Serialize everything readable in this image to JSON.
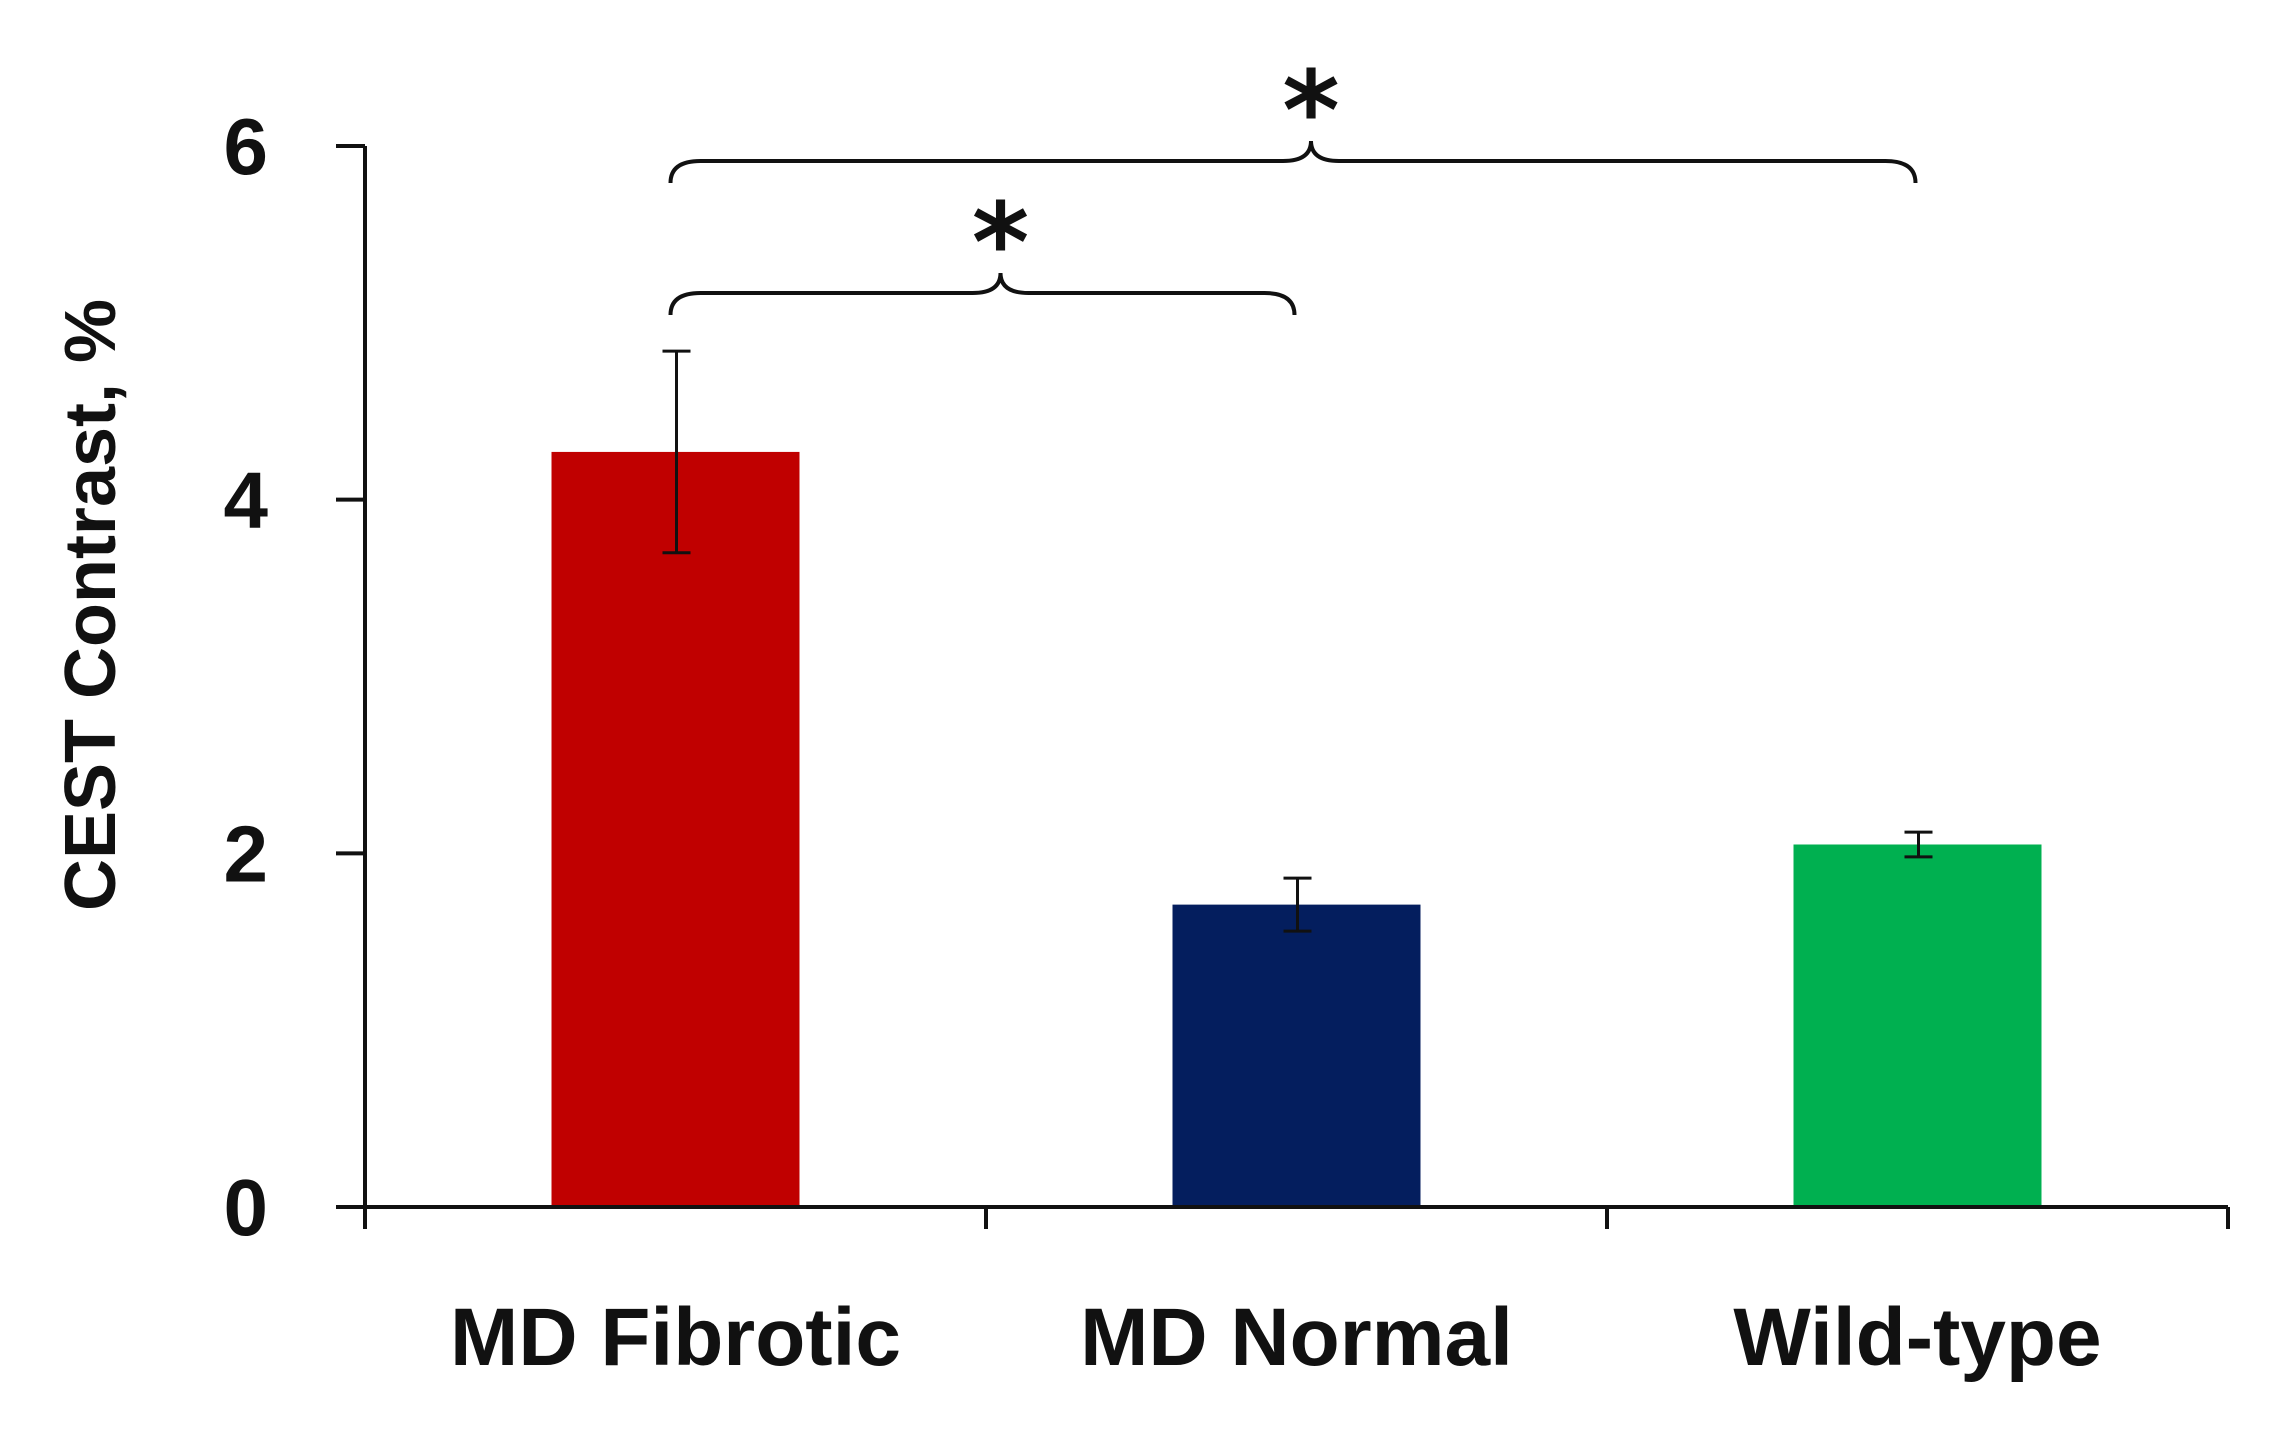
{
  "chart_data": {
    "type": "bar",
    "title": "",
    "xlabel": "",
    "ylabel": "CEST Contrast, %",
    "ylim": [
      0,
      6
    ],
    "yticks": [
      0,
      2,
      4,
      6
    ],
    "ytick_labels": [
      "0",
      "2",
      "4",
      "6"
    ],
    "categories": [
      "MD Fibrotic",
      "MD Normal",
      "Wild-type"
    ],
    "values": [
      4.27,
      1.71,
      2.05
    ],
    "errors": [
      0.57,
      0.15,
      0.07
    ],
    "colors": [
      "#c00000",
      "#041e5e",
      "#00b050"
    ],
    "grid": false,
    "legend": "none",
    "significance": [
      {
        "from": 0,
        "to": 1,
        "label": "*"
      },
      {
        "from": 0,
        "to": 2,
        "label": "*"
      }
    ]
  }
}
